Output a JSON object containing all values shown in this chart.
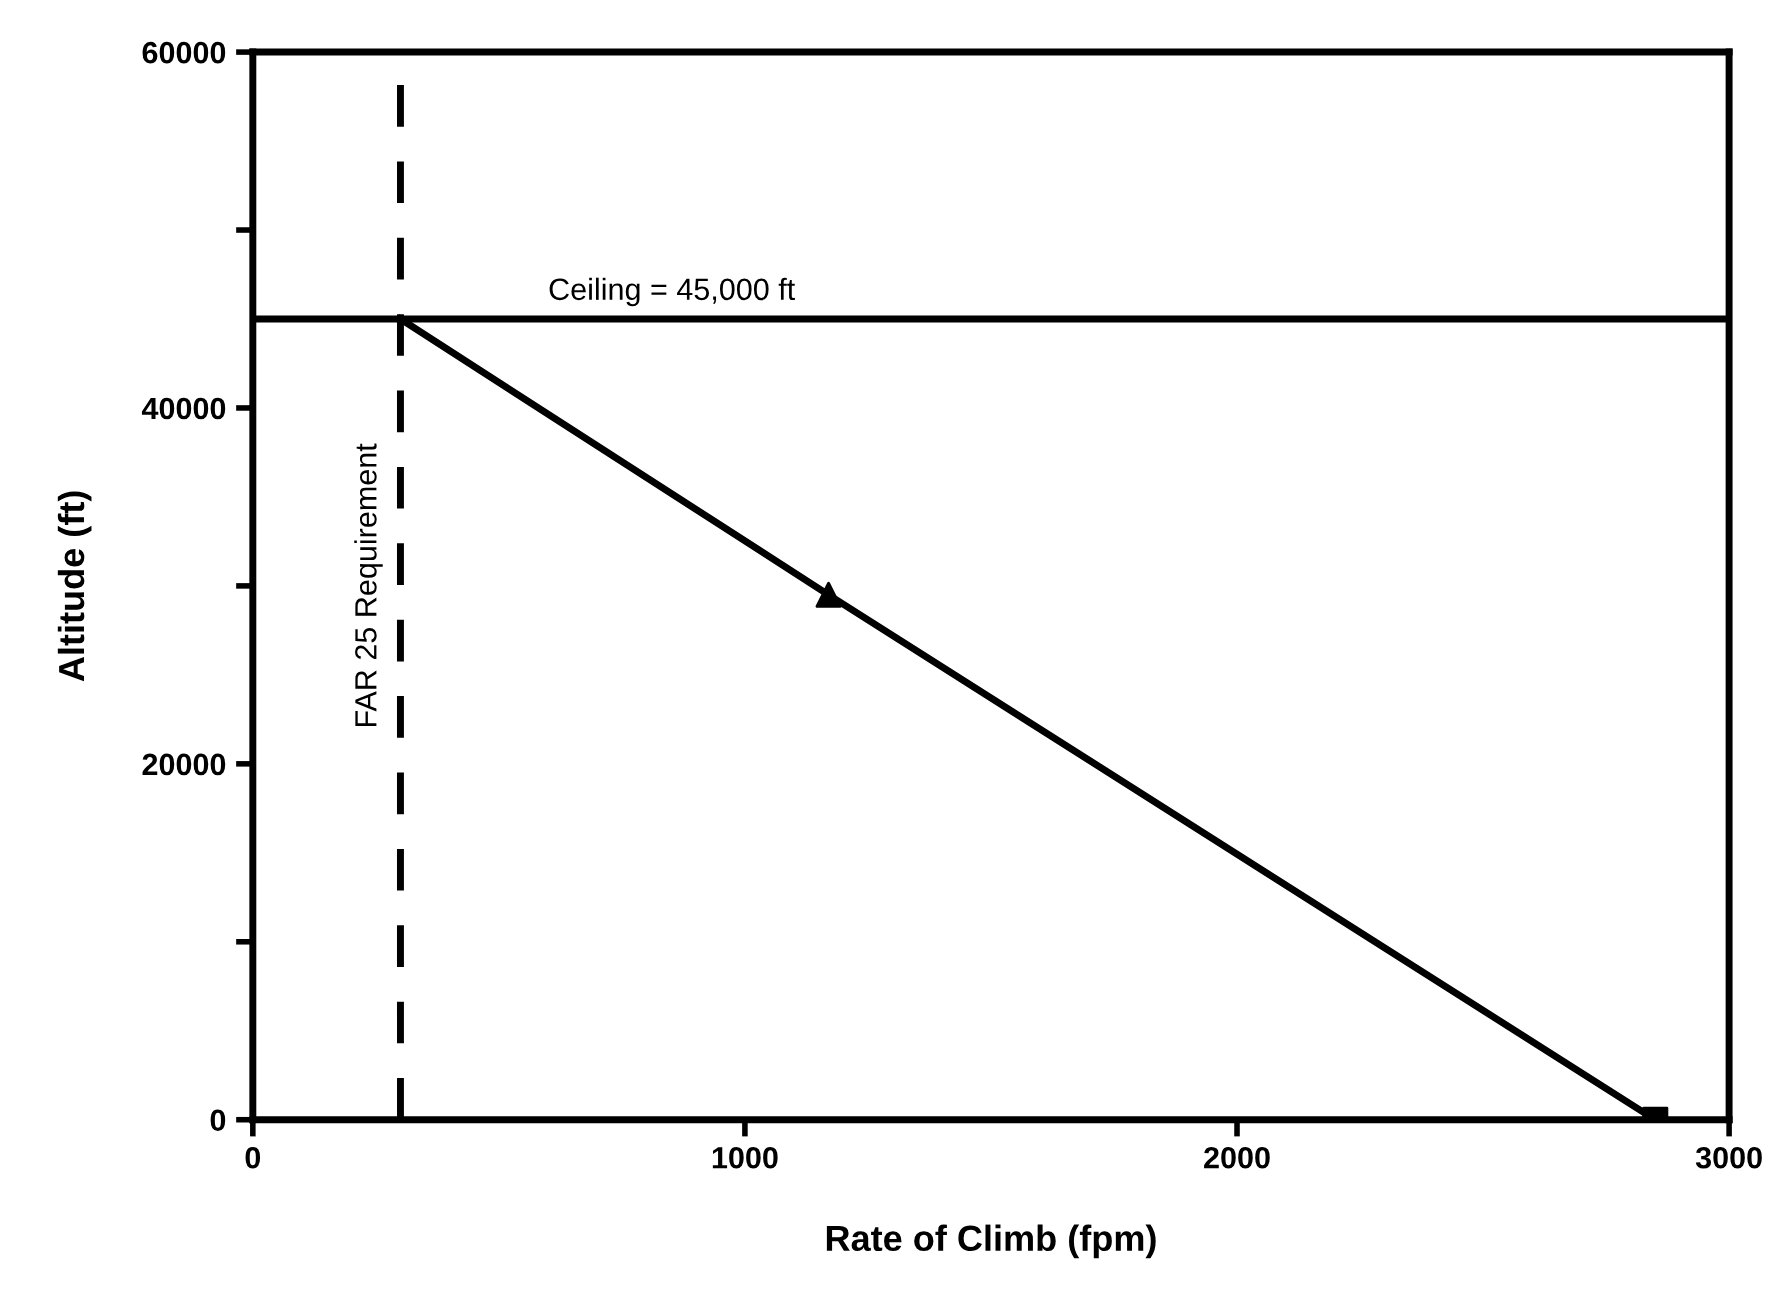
{
  "chart_data": {
    "type": "line",
    "xlabel": "Rate of Climb (fpm)",
    "ylabel": "Altitude (ft)",
    "xlim": [
      0,
      3000
    ],
    "ylim": [
      0,
      60000
    ],
    "xticks": [
      0,
      1000,
      2000,
      3000
    ],
    "yticks": [
      0,
      {
        "value": 10000,
        "label": null
      },
      20000,
      {
        "value": 30000,
        "label": null
      },
      40000,
      {
        "value": 50000,
        "label": null
      },
      60000
    ],
    "grid": false,
    "series": [
      {
        "color": "#000000",
        "x": [
          300,
          1170,
          2850
        ],
        "values": [
          45000,
          29500,
          0
        ],
        "marker": "none",
        "line_style": "solid"
      },
      {
        "type": "scatter",
        "color": "#000000",
        "x": [
          1170
        ],
        "values": [
          29500
        ],
        "marker": "triangle"
      },
      {
        "type": "scatter",
        "color": "#000000",
        "x": [
          2850
        ],
        "values": [
          0
        ],
        "marker": "square"
      }
    ],
    "ref_lines": [
      {
        "axis": "y",
        "value": 45000,
        "label": "Ceiling = 45,000 ft",
        "color": "#000000",
        "line_style": "solid"
      },
      {
        "axis": "x",
        "value": 300,
        "label": "FAR 25 Requirement",
        "color": "#000000",
        "line_style": "dashed"
      }
    ]
  }
}
